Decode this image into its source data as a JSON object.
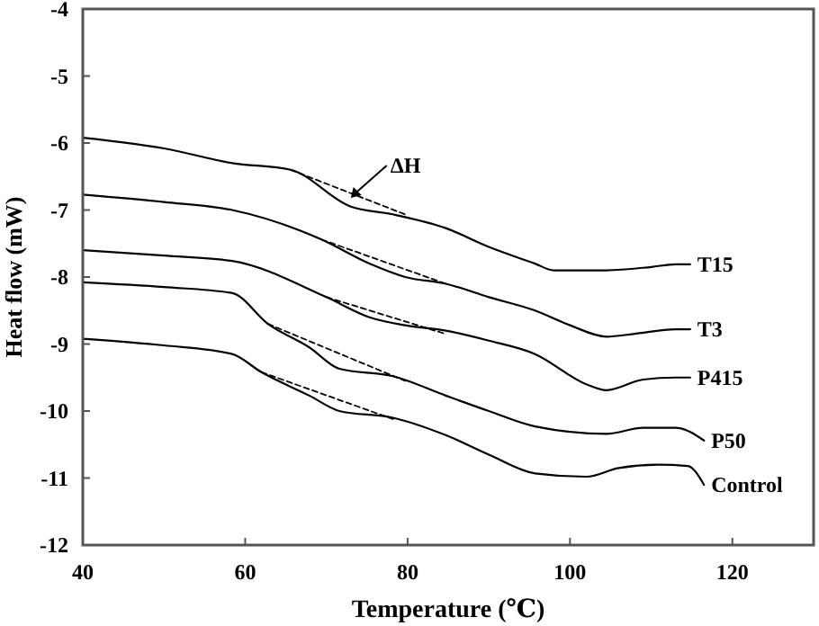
{
  "chart_data": {
    "type": "line",
    "xlabel": "Temperature (℃)",
    "ylabel": "Heat flow (mW)",
    "xlim": [
      40,
      130
    ],
    "ylim": [
      -12,
      -4
    ],
    "xticks": [
      40,
      60,
      80,
      100,
      120
    ],
    "yticks": [
      -12,
      -11,
      -10,
      -9,
      -8,
      -7,
      -6,
      -5,
      -4
    ],
    "grid": false,
    "marker": "none",
    "series": [
      {
        "name": "T15",
        "color": "#000000",
        "line_style": "solid",
        "x": [
          40,
          50,
          58.4,
          65.6,
          73,
          78,
          84.7,
          90,
          95.7,
          98,
          104.5,
          110,
          113,
          114.8
        ],
        "values": [
          -5.92,
          -6.08,
          -6.3,
          -6.4,
          -6.95,
          -7.06,
          -7.27,
          -7.55,
          -7.8,
          -7.9,
          -7.9,
          -7.85,
          -7.81,
          -7.81
        ]
      },
      {
        "name": "T3",
        "color": "#000000",
        "line_style": "solid",
        "x": [
          40,
          50,
          58.4,
          69.4,
          75.3,
          79.7,
          84.7,
          90,
          95.7,
          100,
          104.5,
          107.8,
          113,
          114.8
        ],
        "values": [
          -6.77,
          -6.88,
          -7.0,
          -7.44,
          -7.8,
          -8.0,
          -8.1,
          -8.3,
          -8.5,
          -8.72,
          -8.89,
          -8.85,
          -8.78,
          -8.78
        ]
      },
      {
        "name": "P415",
        "color": "#000000",
        "line_style": "solid",
        "x": [
          40,
          50,
          58.4,
          70,
          75.3,
          79.7,
          84.7,
          90,
          95.7,
          102,
          104.5,
          109,
          113,
          114.8
        ],
        "values": [
          -7.6,
          -7.68,
          -7.76,
          -8.3,
          -8.6,
          -8.72,
          -8.8,
          -8.95,
          -9.15,
          -9.6,
          -9.69,
          -9.53,
          -9.5,
          -9.5
        ]
      },
      {
        "name": "P50",
        "color": "#000000",
        "line_style": "solid",
        "x": [
          40,
          50,
          58.4,
          62.8,
          67.9,
          71.6,
          78.2,
          84.7,
          90,
          95.7,
          104.5,
          109,
          113,
          116.5
        ],
        "values": [
          -8.08,
          -8.15,
          -8.24,
          -8.7,
          -9.05,
          -9.37,
          -9.48,
          -9.77,
          -10.0,
          -10.23,
          -10.34,
          -10.25,
          -10.25,
          -10.44
        ]
      },
      {
        "name": "Control",
        "color": "#000000",
        "line_style": "solid",
        "x": [
          40,
          50,
          58.4,
          62,
          67.9,
          71.6,
          78.2,
          84.7,
          90,
          95.7,
          102,
          106,
          110.8,
          114.5,
          116.5
        ],
        "values": [
          -8.92,
          -9.02,
          -9.15,
          -9.42,
          -9.77,
          -10.0,
          -10.1,
          -10.36,
          -10.65,
          -10.93,
          -10.98,
          -10.85,
          -10.8,
          -10.82,
          -11.1
        ]
      },
      {
        "color": "#000000",
        "line_style": "dashed",
        "x": [
          65.6,
          80
        ],
        "values": [
          -6.4,
          -7.08
        ]
      },
      {
        "color": "#000000",
        "line_style": "dashed",
        "x": [
          69.4,
          84.7
        ],
        "values": [
          -7.44,
          -8.1
        ]
      },
      {
        "color": "#000000",
        "line_style": "dashed",
        "x": [
          70,
          84.7
        ],
        "values": [
          -8.3,
          -8.85
        ]
      },
      {
        "color": "#000000",
        "line_style": "dashed",
        "x": [
          62.8,
          79.7
        ],
        "values": [
          -8.7,
          -9.55
        ]
      },
      {
        "color": "#000000",
        "line_style": "dashed",
        "x": [
          62,
          78.2
        ],
        "values": [
          -9.42,
          -10.12
        ]
      }
    ],
    "annotations": [
      {
        "text": "ΔH",
        "x": 73,
        "y": -6.82
      }
    ]
  }
}
